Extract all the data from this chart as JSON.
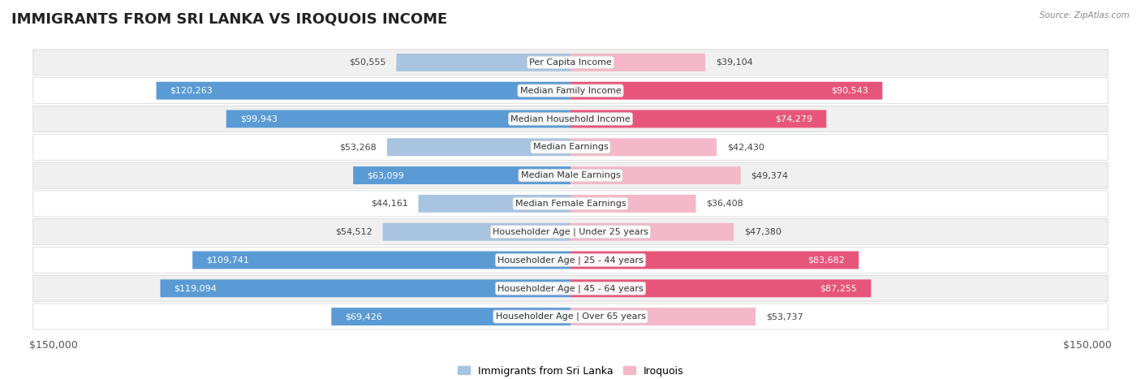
{
  "title": "IMMIGRANTS FROM SRI LANKA VS IROQUOIS INCOME",
  "source": "Source: ZipAtlas.com",
  "categories": [
    "Per Capita Income",
    "Median Family Income",
    "Median Household Income",
    "Median Earnings",
    "Median Male Earnings",
    "Median Female Earnings",
    "Householder Age | Under 25 years",
    "Householder Age | 25 - 44 years",
    "Householder Age | 45 - 64 years",
    "Householder Age | Over 65 years"
  ],
  "sri_lanka_values": [
    50555,
    120263,
    99943,
    53268,
    63099,
    44161,
    54512,
    109741,
    119094,
    69426
  ],
  "iroquois_values": [
    39104,
    90543,
    74279,
    42430,
    49374,
    36408,
    47380,
    83682,
    87255,
    53737
  ],
  "sri_lanka_labels": [
    "$50,555",
    "$120,263",
    "$99,943",
    "$53,268",
    "$63,099",
    "$44,161",
    "$54,512",
    "$109,741",
    "$119,094",
    "$69,426"
  ],
  "iroquois_labels": [
    "$39,104",
    "$90,543",
    "$74,279",
    "$42,430",
    "$49,374",
    "$36,408",
    "$47,380",
    "$83,682",
    "$87,255",
    "$53,737"
  ],
  "sri_lanka_color_light": "#a8c4e0",
  "sri_lanka_color_dark": "#5b9bd5",
  "iroquois_color_light": "#f4b8c8",
  "iroquois_color_dark": "#e8557a",
  "max_value": 150000,
  "x_tick_label_left": "$150,000",
  "x_tick_label_right": "$150,000",
  "legend_sri_lanka": "Immigrants from Sri Lanka",
  "legend_iroquois": "Iroquois",
  "bg_color": "#ffffff",
  "row_color_odd": "#f0f0f0",
  "row_color_even": "#ffffff",
  "title_fontsize": 13,
  "label_fontsize": 8,
  "category_fontsize": 8,
  "inside_label_threshold": 0.42
}
